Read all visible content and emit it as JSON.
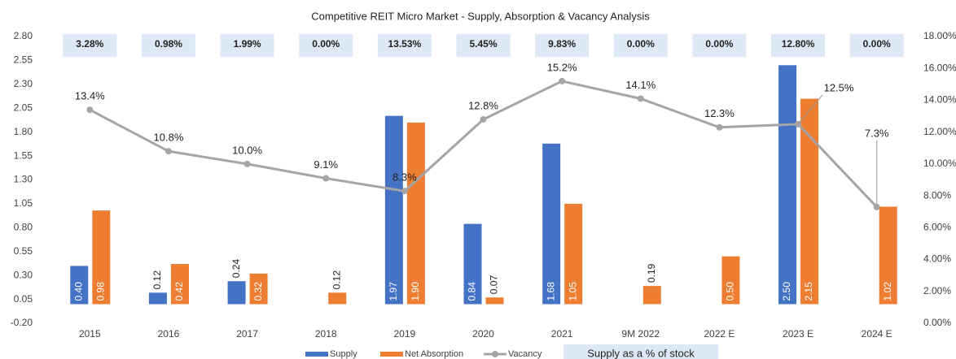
{
  "chart_data": {
    "type": "bar-line",
    "title": "Competitive REIT Micro Market - Supply, Absorption & Vacancy Analysis",
    "categories": [
      "2015",
      "2016",
      "2017",
      "2018",
      "2019",
      "2020",
      "2021",
      "9M 2022",
      "2022 E",
      "2023 E",
      "2024 E"
    ],
    "series": [
      {
        "name": "Supply",
        "color": "#4472c4",
        "values": [
          0.4,
          0.12,
          0.24,
          null,
          1.97,
          0.84,
          1.68,
          null,
          null,
          2.5,
          null
        ],
        "value_labels": [
          "0.40",
          "0.12",
          "0.24",
          null,
          "1.97",
          "0.84",
          "1.68",
          null,
          null,
          "2.50",
          null
        ]
      },
      {
        "name": "Net Absorption",
        "color": "#ed7d31",
        "values": [
          0.98,
          0.42,
          0.32,
          0.12,
          1.9,
          0.07,
          1.05,
          0.19,
          0.5,
          2.15,
          1.02
        ],
        "value_labels": [
          "0.98",
          "0.42",
          "0.32",
          "0.12",
          "1.90",
          "0.07",
          "1.05",
          "0.19",
          "0.50",
          "2.15",
          "1.02"
        ]
      },
      {
        "name": "Vacancy",
        "color": "#a5a5a5",
        "axis": "y2",
        "values": [
          13.4,
          10.8,
          10.0,
          9.1,
          8.3,
          12.8,
          15.2,
          14.1,
          12.3,
          12.5,
          7.3
        ],
        "value_labels": [
          "13.4%",
          "10.8%",
          "10.0%",
          "9.1%",
          "8.3%",
          "12.8%",
          "15.2%",
          "14.1%",
          "12.3%",
          "12.5%",
          "7.3%"
        ]
      }
    ],
    "supply_share": {
      "name": "Supply as a % of stock",
      "color": "#dde9f6",
      "values": [
        3.28,
        0.98,
        1.99,
        0.0,
        13.53,
        5.45,
        9.83,
        0.0,
        0.0,
        12.8,
        0.0
      ],
      "value_labels": [
        "3.28%",
        "0.98%",
        "1.99%",
        "0.00%",
        "13.53%",
        "5.45%",
        "9.83%",
        "0.00%",
        "0.00%",
        "12.80%",
        "0.00%"
      ]
    },
    "ylim": [
      -0.2,
      2.8
    ],
    "yticks": [
      {
        "value": -0.2,
        "label": "-0.20"
      },
      {
        "value": 0.05,
        "label": "0.05"
      },
      {
        "value": 0.3,
        "label": "0.30"
      },
      {
        "value": 0.55,
        "label": "0.55"
      },
      {
        "value": 0.8,
        "label": "0.80"
      },
      {
        "value": 1.05,
        "label": "1.05"
      },
      {
        "value": 1.3,
        "label": "1.30"
      },
      {
        "value": 1.55,
        "label": "1.55"
      },
      {
        "value": 1.8,
        "label": "1.80"
      },
      {
        "value": 2.05,
        "label": "2.05"
      },
      {
        "value": 2.3,
        "label": "2.30"
      },
      {
        "value": 2.55,
        "label": "2.55"
      },
      {
        "value": 2.8,
        "label": "2.80"
      }
    ],
    "y2lim": [
      0,
      18
    ],
    "y2ticks": [
      {
        "value": 0,
        "label": "0.00%"
      },
      {
        "value": 2,
        "label": "2.00%"
      },
      {
        "value": 4,
        "label": "4.00%"
      },
      {
        "value": 6,
        "label": "6.00%"
      },
      {
        "value": 8,
        "label": "8.00%"
      },
      {
        "value": 10,
        "label": "10.00%"
      },
      {
        "value": 12,
        "label": "12.00%"
      },
      {
        "value": 14,
        "label": "14.00%"
      },
      {
        "value": 16,
        "label": "16.00%"
      },
      {
        "value": 18,
        "label": "18.00%"
      }
    ],
    "grid": false,
    "legend": "bottom"
  }
}
